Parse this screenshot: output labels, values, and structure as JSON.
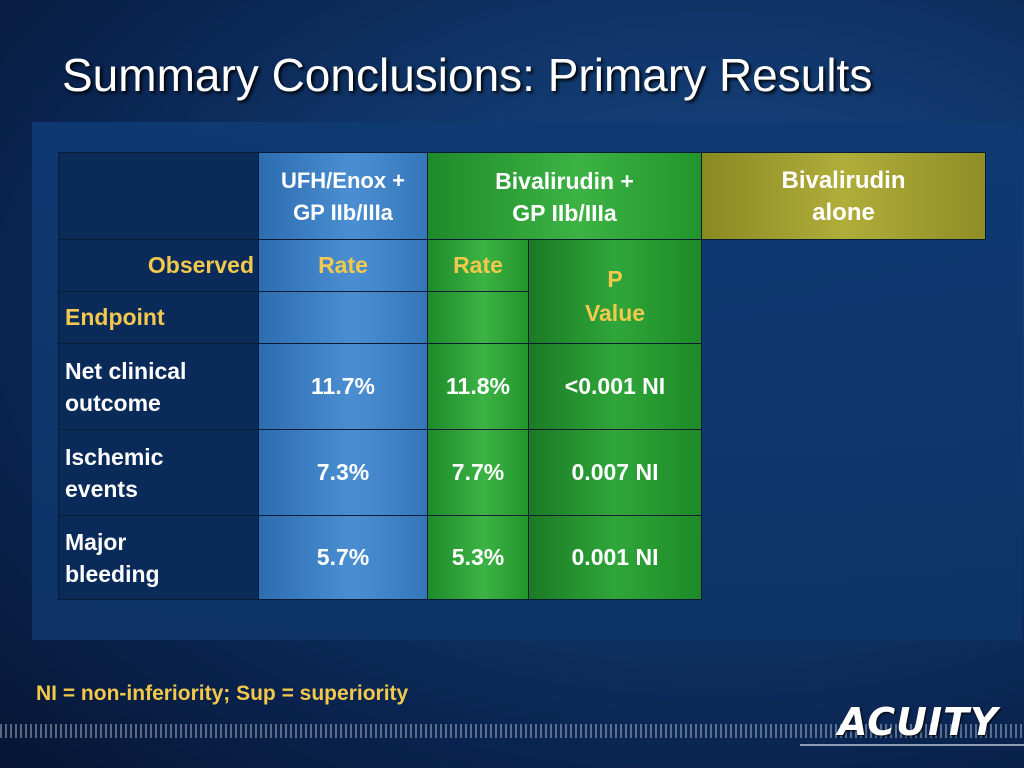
{
  "title": "Summary Conclusions: Primary Results",
  "table": {
    "headers": {
      "col1": [
        "UFH/Enox +",
        "GP IIb/IIIa"
      ],
      "col2": [
        "Bivalirudin +",
        "GP IIb/IIIa"
      ],
      "col3": [
        "Bivalirudin",
        "alone"
      ]
    },
    "subheader": {
      "observed": "Observed",
      "endpoint": "Endpoint",
      "rate1": "Rate",
      "rate2": "Rate",
      "p_value": [
        "P",
        "Value"
      ]
    },
    "rows": [
      {
        "endpoint": [
          "Net clinical",
          "outcome"
        ],
        "ufh_rate": "11.7%",
        "biv_gp_rate": "11.8%",
        "p_value": "<0.001 NI"
      },
      {
        "endpoint": [
          "Ischemic",
          "events"
        ],
        "ufh_rate": "7.3%",
        "biv_gp_rate": "7.7%",
        "p_value": "0.007 NI"
      },
      {
        "endpoint": [
          "Major",
          "bleeding"
        ],
        "ufh_rate": "5.7%",
        "biv_gp_rate": "5.3%",
        "p_value": "0.001 NI"
      }
    ]
  },
  "footnote": "NI = non-inferiority; Sup = superiority",
  "logo": "ACUITY",
  "colors": {
    "background": "#0a2450",
    "ufh_column": "#4b8fd2",
    "bivalirudin_gp_column": "#3cb344",
    "bivalirudin_alone_column": "#b0ad3a",
    "highlight_text": "#f2c94c"
  }
}
